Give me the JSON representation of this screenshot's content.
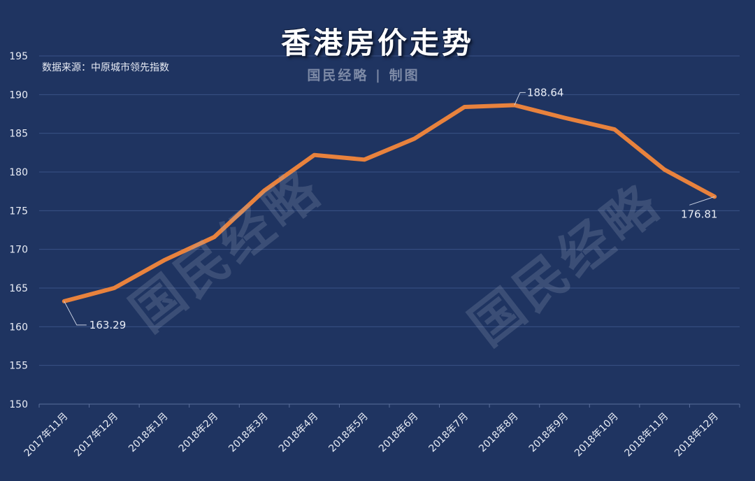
{
  "header": {
    "title": "香港房价走势",
    "source": "数据来源：中原城市领先指数",
    "credit": "国民经略 | 制图",
    "watermark": "国民经略"
  },
  "colors": {
    "background": "#1f3461",
    "line": "#e8823d",
    "grid": "#3a5286",
    "text": "#e8ecf5"
  },
  "chart_data": {
    "type": "line",
    "title": "香港房价走势",
    "xlabel": "",
    "ylabel": "",
    "ylim": [
      150,
      195
    ],
    "yticks": [
      150,
      155,
      160,
      165,
      170,
      175,
      180,
      185,
      190,
      195
    ],
    "grid": true,
    "categories": [
      "2017年11月",
      "2017年12月",
      "2018年1月",
      "2018年2月",
      "2018年3月",
      "2018年4月",
      "2018年5月",
      "2018年6月",
      "2018年7月",
      "2018年8月",
      "2018年9月",
      "2018年10月",
      "2018年11月",
      "2018年12月"
    ],
    "series": [
      {
        "values": [
          163.29,
          165.0,
          168.6,
          171.6,
          177.6,
          182.2,
          181.6,
          184.3,
          188.4,
          188.64,
          187.0,
          185.5,
          180.3,
          176.81
        ]
      }
    ],
    "annotations": [
      {
        "index": 0,
        "label": "163.29",
        "position": "below-right"
      },
      {
        "index": 9,
        "label": "188.64",
        "position": "above-right"
      },
      {
        "index": 13,
        "label": "176.81",
        "position": "below-left"
      }
    ]
  }
}
